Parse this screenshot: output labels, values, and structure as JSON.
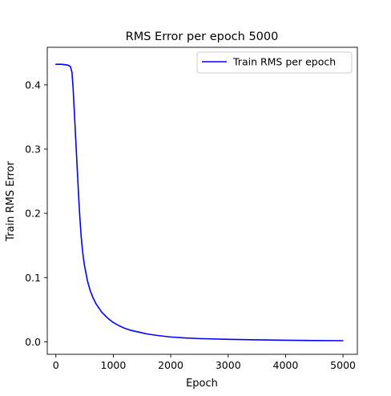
{
  "chart_data": {
    "type": "line",
    "title": "RMS Error per epoch 5000",
    "xlabel": "Epoch",
    "ylabel": "Train RMS Error",
    "xlim": [
      -150,
      5250
    ],
    "ylim": [
      -0.0195,
      0.4585
    ],
    "xticks": [
      0,
      1000,
      2000,
      3000,
      4000,
      5000
    ],
    "yticks": [
      0.0,
      0.1,
      0.2,
      0.3,
      0.4
    ],
    "xtick_labels": [
      "0",
      "1000",
      "2000",
      "3000",
      "4000",
      "5000"
    ],
    "ytick_labels": [
      "0.0",
      "0.1",
      "0.2",
      "0.3",
      "0.4"
    ],
    "grid": false,
    "legend_position": "top-right",
    "series": [
      {
        "name": "Train RMS per epoch",
        "color": "#0000ff",
        "x": [
          0,
          100,
          200,
          250,
          280,
          300,
          320,
          340,
          360,
          380,
          400,
          420,
          440,
          460,
          480,
          500,
          550,
          600,
          650,
          700,
          800,
          900,
          1000,
          1100,
          1200,
          1300,
          1400,
          1500,
          1600,
          1800,
          2000,
          2250,
          2500,
          3000,
          3500,
          4000,
          4500,
          5000
        ],
        "y": [
          0.432,
          0.432,
          0.431,
          0.429,
          0.42,
          0.395,
          0.36,
          0.325,
          0.29,
          0.255,
          0.22,
          0.19,
          0.165,
          0.145,
          0.13,
          0.118,
          0.095,
          0.079,
          0.068,
          0.059,
          0.046,
          0.037,
          0.03,
          0.025,
          0.021,
          0.018,
          0.016,
          0.014,
          0.012,
          0.0095,
          0.0075,
          0.006,
          0.005,
          0.0038,
          0.003,
          0.0024,
          0.002,
          0.0017
        ]
      }
    ]
  }
}
